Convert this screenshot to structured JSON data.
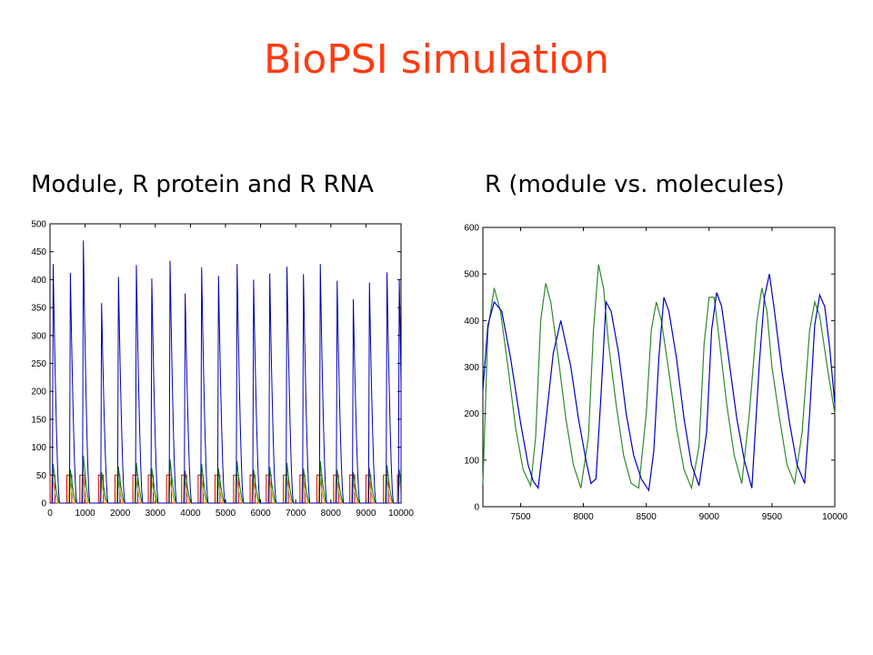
{
  "slide": {
    "title": "BioPSI simulation"
  },
  "chart_data": [
    {
      "type": "line",
      "title": "Module, R protein and R RNA",
      "xlabel": "",
      "ylabel": "",
      "xlim": [
        0,
        10000
      ],
      "ylim": [
        0,
        500
      ],
      "xticks": [
        0,
        1000,
        2000,
        3000,
        4000,
        5000,
        6000,
        7000,
        8000,
        9000,
        10000
      ],
      "yticks": [
        0,
        50,
        100,
        150,
        200,
        250,
        300,
        350,
        400,
        450,
        500
      ],
      "grid": false,
      "series": [
        {
          "color": "#0000b4",
          "kind": "spikes",
          "peaks_x": [
            90,
            580,
            950,
            1470,
            1950,
            2460,
            2900,
            3420,
            3850,
            4320,
            4800,
            5330,
            5800,
            6260,
            6750,
            7220,
            7700,
            8180,
            8640,
            9100,
            9600,
            9950
          ],
          "peaks_y": [
            428,
            412,
            470,
            358,
            405,
            426,
            402,
            434,
            375,
            422,
            407,
            428,
            400,
            411,
            423,
            410,
            428,
            398,
            365,
            395,
            413,
            400
          ],
          "baseline": 0
        },
        {
          "color": "#008000",
          "kind": "spikes",
          "peaks_x": [
            90,
            580,
            950,
            1470,
            1950,
            2460,
            2900,
            3420,
            3850,
            4320,
            4800,
            5330,
            5800,
            6260,
            6750,
            7220,
            7700,
            8180,
            8640,
            9100,
            9600,
            9950
          ],
          "peaks_y": [
            70,
            60,
            85,
            55,
            65,
            72,
            62,
            78,
            58,
            70,
            62,
            75,
            60,
            65,
            72,
            62,
            75,
            60,
            55,
            62,
            68,
            60
          ],
          "baseline": 0
        },
        {
          "color": "#d00000",
          "kind": "pulses",
          "high": 50,
          "low": 0,
          "pulse_starts": [
            0,
            480,
            850,
            1380,
            1850,
            2360,
            2800,
            3320,
            3750,
            4220,
            4700,
            5230,
            5700,
            6160,
            6650,
            7120,
            7600,
            8080,
            8540,
            9000,
            9500,
            9900
          ],
          "pulse_width": 140
        },
        {
          "color": "#c9a800",
          "kind": "spikes",
          "peaks_x": [
            60,
            550,
            920,
            1440,
            1920,
            2430,
            2870,
            3390,
            3820,
            4290,
            4770,
            5300,
            5770,
            6230,
            6720,
            7190,
            7670,
            8150,
            8610,
            9070,
            9570,
            9930
          ],
          "peaks_y": [
            52,
            50,
            54,
            50,
            52,
            53,
            51,
            54,
            50,
            52,
            51,
            53,
            50,
            52,
            53,
            51,
            53,
            50,
            49,
            51,
            52,
            50
          ],
          "baseline": 0
        }
      ]
    },
    {
      "type": "line",
      "title": "R (module vs. molecules)",
      "xlabel": "",
      "ylabel": "",
      "xlim": [
        7200,
        10000
      ],
      "ylim": [
        0,
        600
      ],
      "xticks": [
        7500,
        8000,
        8500,
        9000,
        9500,
        10000
      ],
      "yticks": [
        0,
        100,
        200,
        300,
        400,
        500,
        600
      ],
      "grid": false,
      "series": [
        {
          "color": "#0000c8",
          "x": [
            7200,
            7240,
            7290,
            7350,
            7420,
            7500,
            7560,
            7600,
            7640,
            7700,
            7760,
            7820,
            7900,
            7960,
            8020,
            8060,
            8100,
            8140,
            8180,
            8220,
            8280,
            8340,
            8400,
            8460,
            8520,
            8560,
            8600,
            8640,
            8680,
            8740,
            8800,
            8860,
            8920,
            8980,
            9020,
            9060,
            9100,
            9160,
            9220,
            9280,
            9340,
            9400,
            9440,
            9480,
            9520,
            9580,
            9640,
            9700,
            9760,
            9800,
            9840,
            9880,
            9920,
            9960,
            10000
          ],
          "y": [
            250,
            390,
            440,
            420,
            320,
            180,
            90,
            55,
            40,
            180,
            330,
            400,
            300,
            190,
            100,
            50,
            60,
            240,
            440,
            420,
            330,
            200,
            110,
            60,
            35,
            120,
            320,
            450,
            420,
            320,
            190,
            90,
            45,
            160,
            380,
            460,
            430,
            310,
            190,
            100,
            40,
            310,
            450,
            500,
            420,
            290,
            180,
            90,
            50,
            200,
            390,
            455,
            430,
            340,
            220
          ]
        },
        {
          "color": "#2e8b2e",
          "x": [
            7200,
            7240,
            7290,
            7340,
            7400,
            7460,
            7520,
            7580,
            7620,
            7660,
            7700,
            7740,
            7800,
            7860,
            7920,
            7980,
            8040,
            8080,
            8120,
            8160,
            8200,
            8260,
            8320,
            8380,
            8440,
            8500,
            8540,
            8580,
            8620,
            8680,
            8740,
            8800,
            8860,
            8920,
            8960,
            9000,
            9040,
            9080,
            9140,
            9200,
            9260,
            9320,
            9380,
            9420,
            9460,
            9500,
            9560,
            9620,
            9680,
            9740,
            9800,
            9840,
            9880,
            9940,
            10000
          ],
          "y": [
            50,
            380,
            470,
            420,
            300,
            170,
            80,
            45,
            150,
            400,
            480,
            440,
            320,
            190,
            90,
            40,
            150,
            380,
            520,
            470,
            350,
            220,
            110,
            50,
            40,
            200,
            380,
            440,
            400,
            290,
            170,
            80,
            40,
            130,
            350,
            450,
            450,
            360,
            220,
            110,
            50,
            200,
            400,
            470,
            420,
            300,
            190,
            90,
            50,
            160,
            380,
            440,
            410,
            300,
            200
          ]
        }
      ]
    }
  ]
}
